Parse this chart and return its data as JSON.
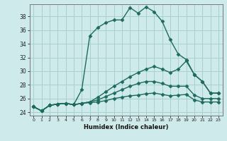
{
  "xlabel": "Humidex (Indice chaleur)",
  "ylabel": "",
  "xlim": [
    -0.5,
    23.5
  ],
  "ylim": [
    23.5,
    39.8
  ],
  "bg_color": "#ceeaea",
  "grid_color": "#a8d0d0",
  "line_color": "#1e6b5e",
  "line_width": 1.0,
  "marker": "D",
  "marker_size": 2.5,
  "xticks": [
    0,
    1,
    2,
    3,
    4,
    5,
    6,
    7,
    8,
    9,
    10,
    11,
    12,
    13,
    14,
    15,
    16,
    17,
    18,
    19,
    20,
    21,
    22,
    23
  ],
  "yticks": [
    24,
    26,
    28,
    30,
    32,
    34,
    36,
    38
  ],
  "lines": [
    {
      "x": [
        0,
        1,
        2,
        3,
        4,
        5,
        6,
        7,
        8,
        9,
        10,
        11,
        12,
        13,
        14,
        15,
        16,
        17,
        18,
        19,
        20,
        21,
        22,
        23
      ],
      "y": [
        24.8,
        24.2,
        25.0,
        25.2,
        25.3,
        25.1,
        27.3,
        35.2,
        36.4,
        37.1,
        37.5,
        37.5,
        39.3,
        38.5,
        39.4,
        38.7,
        37.3,
        34.6,
        32.5,
        31.7,
        29.5,
        28.5,
        26.8,
        26.8
      ]
    },
    {
      "x": [
        0,
        1,
        2,
        3,
        4,
        5,
        6,
        7,
        8,
        9,
        10,
        11,
        12,
        13,
        14,
        15,
        16,
        17,
        18,
        19,
        20,
        21,
        22,
        23
      ],
      "y": [
        24.8,
        24.2,
        25.0,
        25.2,
        25.3,
        25.1,
        25.3,
        25.5,
        26.2,
        27.0,
        27.8,
        28.5,
        29.2,
        29.8,
        30.3,
        30.7,
        30.3,
        29.8,
        30.3,
        31.5,
        29.5,
        28.5,
        26.8,
        26.8
      ]
    },
    {
      "x": [
        0,
        1,
        2,
        3,
        4,
        5,
        6,
        7,
        8,
        9,
        10,
        11,
        12,
        13,
        14,
        15,
        16,
        17,
        18,
        19,
        20,
        21,
        22,
        23
      ],
      "y": [
        24.8,
        24.2,
        25.0,
        25.2,
        25.3,
        25.1,
        25.3,
        25.5,
        25.8,
        26.3,
        26.8,
        27.3,
        27.8,
        28.2,
        28.5,
        28.5,
        28.2,
        27.8,
        27.8,
        27.8,
        26.5,
        26.0,
        26.0,
        26.0
      ]
    },
    {
      "x": [
        0,
        1,
        2,
        3,
        4,
        5,
        6,
        7,
        8,
        9,
        10,
        11,
        12,
        13,
        14,
        15,
        16,
        17,
        18,
        19,
        20,
        21,
        22,
        23
      ],
      "y": [
        24.8,
        24.2,
        25.0,
        25.2,
        25.3,
        25.1,
        25.3,
        25.4,
        25.5,
        25.7,
        26.0,
        26.2,
        26.4,
        26.5,
        26.7,
        26.8,
        26.6,
        26.4,
        26.5,
        26.6,
        25.8,
        25.5,
        25.5,
        25.5
      ]
    }
  ]
}
